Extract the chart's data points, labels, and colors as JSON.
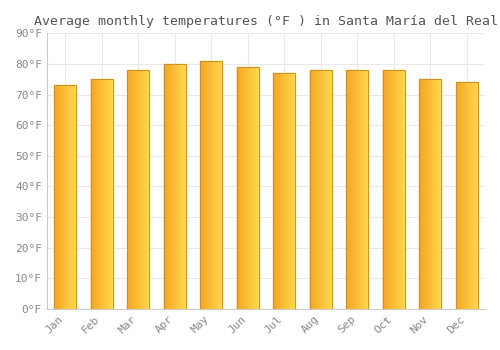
{
  "title": "Average monthly temperatures (°F ) in Santa María del Real",
  "months": [
    "Jan",
    "Feb",
    "Mar",
    "Apr",
    "May",
    "Jun",
    "Jul",
    "Aug",
    "Sep",
    "Oct",
    "Nov",
    "Dec"
  ],
  "values": [
    73,
    75,
    78,
    80,
    81,
    79,
    77,
    78,
    78,
    78,
    75,
    74
  ],
  "bar_color_left": "#F5A623",
  "bar_color_right": "#FFD84D",
  "bar_edge_color": "#C8922A",
  "ylim": [
    0,
    90
  ],
  "yticks": [
    0,
    10,
    20,
    30,
    40,
    50,
    60,
    70,
    80,
    90
  ],
  "ytick_labels": [
    "0°F",
    "10°F",
    "20°F",
    "30°F",
    "40°F",
    "50°F",
    "60°F",
    "70°F",
    "80°F",
    "90°F"
  ],
  "background_color": "#ffffff",
  "grid_color": "#e8e8e8",
  "title_fontsize": 9.5,
  "tick_fontsize": 8,
  "bar_width": 0.6
}
